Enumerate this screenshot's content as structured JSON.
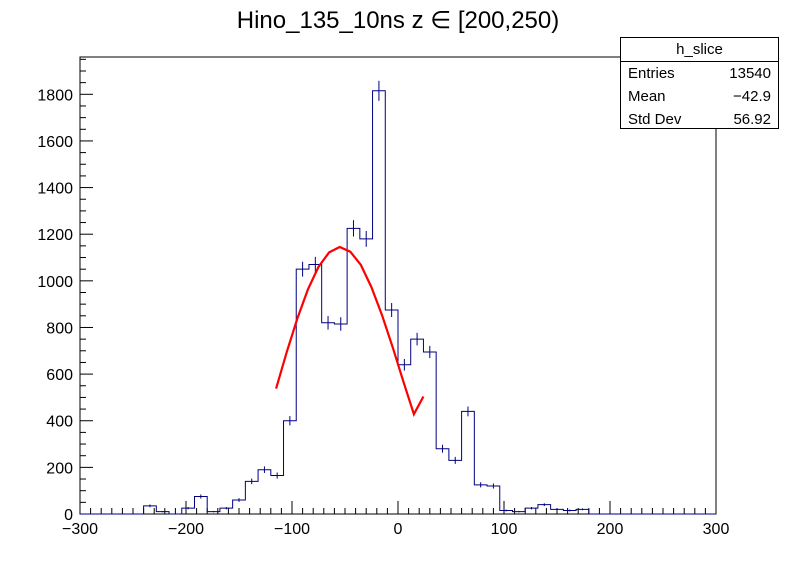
{
  "chart_data": {
    "type": "histogram",
    "title": "Hino_135_10ns z  ∈ [200,250)",
    "xlabel": "",
    "ylabel": "",
    "xlim": [
      -300,
      300
    ],
    "ylim": [
      0,
      1960
    ],
    "x_ticks": [
      -300,
      -200,
      -100,
      0,
      100,
      200,
      300
    ],
    "x_tick_labels": [
      "−300",
      "−200",
      "−100",
      "0",
      "100",
      "200",
      "300"
    ],
    "y_ticks": [
      0,
      200,
      400,
      600,
      800,
      1000,
      1200,
      1400,
      1600,
      1800
    ],
    "y_tick_labels": [
      "0",
      "200",
      "400",
      "600",
      "800",
      "1000",
      "1200",
      "1400",
      "1600",
      "1800"
    ],
    "grid": false,
    "bin_width": 12,
    "bin_edges_start": -300,
    "counts": [
      0,
      0,
      0,
      0,
      0,
      35,
      10,
      0,
      25,
      75,
      10,
      25,
      60,
      140,
      190,
      165,
      400,
      1050,
      1070,
      820,
      815,
      1225,
      1180,
      1815,
      875,
      640,
      750,
      695,
      280,
      230,
      440,
      125,
      120,
      15,
      10,
      25,
      40,
      20,
      15,
      20,
      0,
      0,
      0,
      0,
      0,
      0,
      0,
      0,
      0,
      0
    ],
    "errors": [
      0,
      0,
      0,
      0,
      0,
      6,
      3,
      0,
      5,
      9,
      3,
      5,
      8,
      12,
      14,
      13,
      20,
      32,
      33,
      29,
      29,
      35,
      34,
      43,
      30,
      25,
      27,
      26,
      17,
      15,
      21,
      11,
      11,
      4,
      3,
      5,
      6,
      4,
      4,
      4,
      0,
      0,
      0,
      0,
      0,
      0,
      0,
      0,
      0,
      0
    ],
    "fit": {
      "name": "gaus",
      "x": [
        -115,
        -105,
        -95,
        -85,
        -75,
        -65,
        -55,
        -45,
        -35,
        -25,
        -15,
        -5,
        5,
        15,
        24
      ],
      "y": [
        538,
        694,
        838,
        963,
        1060,
        1122,
        1145,
        1125,
        1068,
        972,
        852,
        715,
        569,
        428,
        504
      ]
    },
    "colors": {
      "hist": "#000080",
      "fit": "#ff0000",
      "axis": "#000000"
    },
    "stats_box": {
      "header": "h_slice",
      "rows": [
        {
          "label": "Entries",
          "value": "13540"
        },
        {
          "label": "Mean",
          "value": "−42.9"
        },
        {
          "label": "Std Dev",
          "value": "56.92"
        }
      ]
    }
  }
}
